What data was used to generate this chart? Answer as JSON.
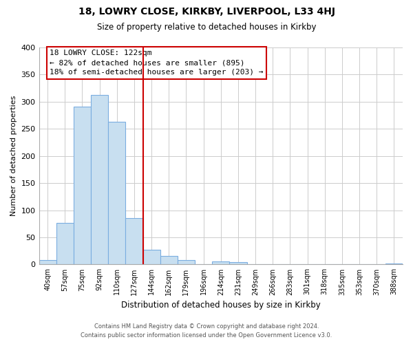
{
  "title1": "18, LOWRY CLOSE, KIRKBY, LIVERPOOL, L33 4HJ",
  "title2": "Size of property relative to detached houses in Kirkby",
  "xlabel": "Distribution of detached houses by size in Kirkby",
  "ylabel": "Number of detached properties",
  "bar_labels": [
    "40sqm",
    "57sqm",
    "75sqm",
    "92sqm",
    "110sqm",
    "127sqm",
    "144sqm",
    "162sqm",
    "179sqm",
    "196sqm",
    "214sqm",
    "231sqm",
    "249sqm",
    "266sqm",
    "283sqm",
    "301sqm",
    "318sqm",
    "335sqm",
    "353sqm",
    "370sqm",
    "388sqm"
  ],
  "bar_heights": [
    8,
    77,
    291,
    312,
    263,
    85,
    27,
    16,
    8,
    0,
    5,
    4,
    0,
    0,
    1,
    1,
    0,
    0,
    0,
    0,
    2
  ],
  "bar_color": "#c8dff0",
  "bar_edge_color": "#7aade0",
  "vline_index": 5,
  "vline_color": "#cc0000",
  "annotation_title": "18 LOWRY CLOSE: 122sqm",
  "annotation_line1": "← 82% of detached houses are smaller (895)",
  "annotation_line2": "18% of semi-detached houses are larger (203) →",
  "annotation_box_color": "#ffffff",
  "annotation_box_edge": "#cc0000",
  "ylim": [
    0,
    400
  ],
  "yticks": [
    0,
    50,
    100,
    150,
    200,
    250,
    300,
    350,
    400
  ],
  "footer1": "Contains HM Land Registry data © Crown copyright and database right 2024.",
  "footer2": "Contains public sector information licensed under the Open Government Licence v3.0."
}
